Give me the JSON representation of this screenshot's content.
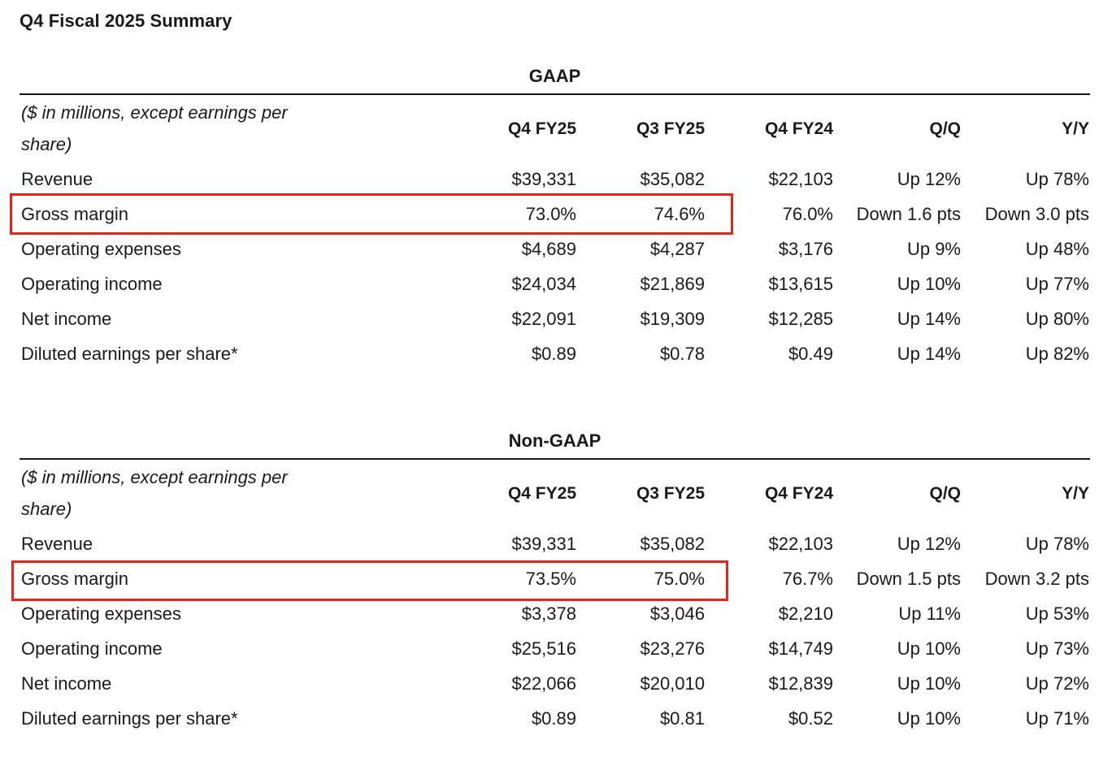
{
  "title": "Q4 Fiscal 2025 Summary",
  "unit_note": "($ in millions, except earnings per share)",
  "columns": [
    "Q4 FY25",
    "Q3 FY25",
    "Q4 FY24",
    "Q/Q",
    "Y/Y"
  ],
  "highlight_color": "#e8231b",
  "gaap": {
    "heading": "GAAP",
    "rows": [
      {
        "label": "Revenue",
        "values": [
          "$39,331",
          "$35,082",
          "$22,103",
          "Up 12%",
          "Up 78%"
        ]
      },
      {
        "label": "Gross margin",
        "values": [
          "73.0%",
          "74.6%",
          "76.0%",
          "Down 1.6 pts",
          "Down 3.0 pts"
        ],
        "highlighted": true
      },
      {
        "label": "Operating expenses",
        "values": [
          "$4,689",
          "$4,287",
          "$3,176",
          "Up 9%",
          "Up 48%"
        ]
      },
      {
        "label": "Operating income",
        "values": [
          "$24,034",
          "$21,869",
          "$13,615",
          "Up 10%",
          "Up 77%"
        ]
      },
      {
        "label": "Net income",
        "values": [
          "$22,091",
          "$19,309",
          "$12,285",
          "Up 14%",
          "Up 80%"
        ]
      },
      {
        "label": "Diluted earnings per share*",
        "values": [
          "$0.89",
          "$0.78",
          "$0.49",
          "Up 14%",
          "Up 82%"
        ]
      }
    ]
  },
  "non_gaap": {
    "heading": "Non-GAAP",
    "rows": [
      {
        "label": "Revenue",
        "values": [
          "$39,331",
          "$35,082",
          "$22,103",
          "Up 12%",
          "Up 78%"
        ]
      },
      {
        "label": "Gross margin",
        "values": [
          "73.5%",
          "75.0%",
          "76.7%",
          "Down 1.5 pts",
          "Down 3.2 pts"
        ],
        "highlighted": true
      },
      {
        "label": "Operating expenses",
        "values": [
          "$3,378",
          "$3,046",
          "$2,210",
          "Up 11%",
          "Up 53%"
        ]
      },
      {
        "label": "Operating income",
        "values": [
          "$25,516",
          "$23,276",
          "$14,749",
          "Up 10%",
          "Up 73%"
        ]
      },
      {
        "label": "Net income",
        "values": [
          "$22,066",
          "$20,010",
          "$12,839",
          "Up 10%",
          "Up 72%"
        ]
      },
      {
        "label": "Diluted earnings per share*",
        "values": [
          "$0.89",
          "$0.81",
          "$0.52",
          "Up 10%",
          "Up 71%"
        ]
      }
    ]
  }
}
